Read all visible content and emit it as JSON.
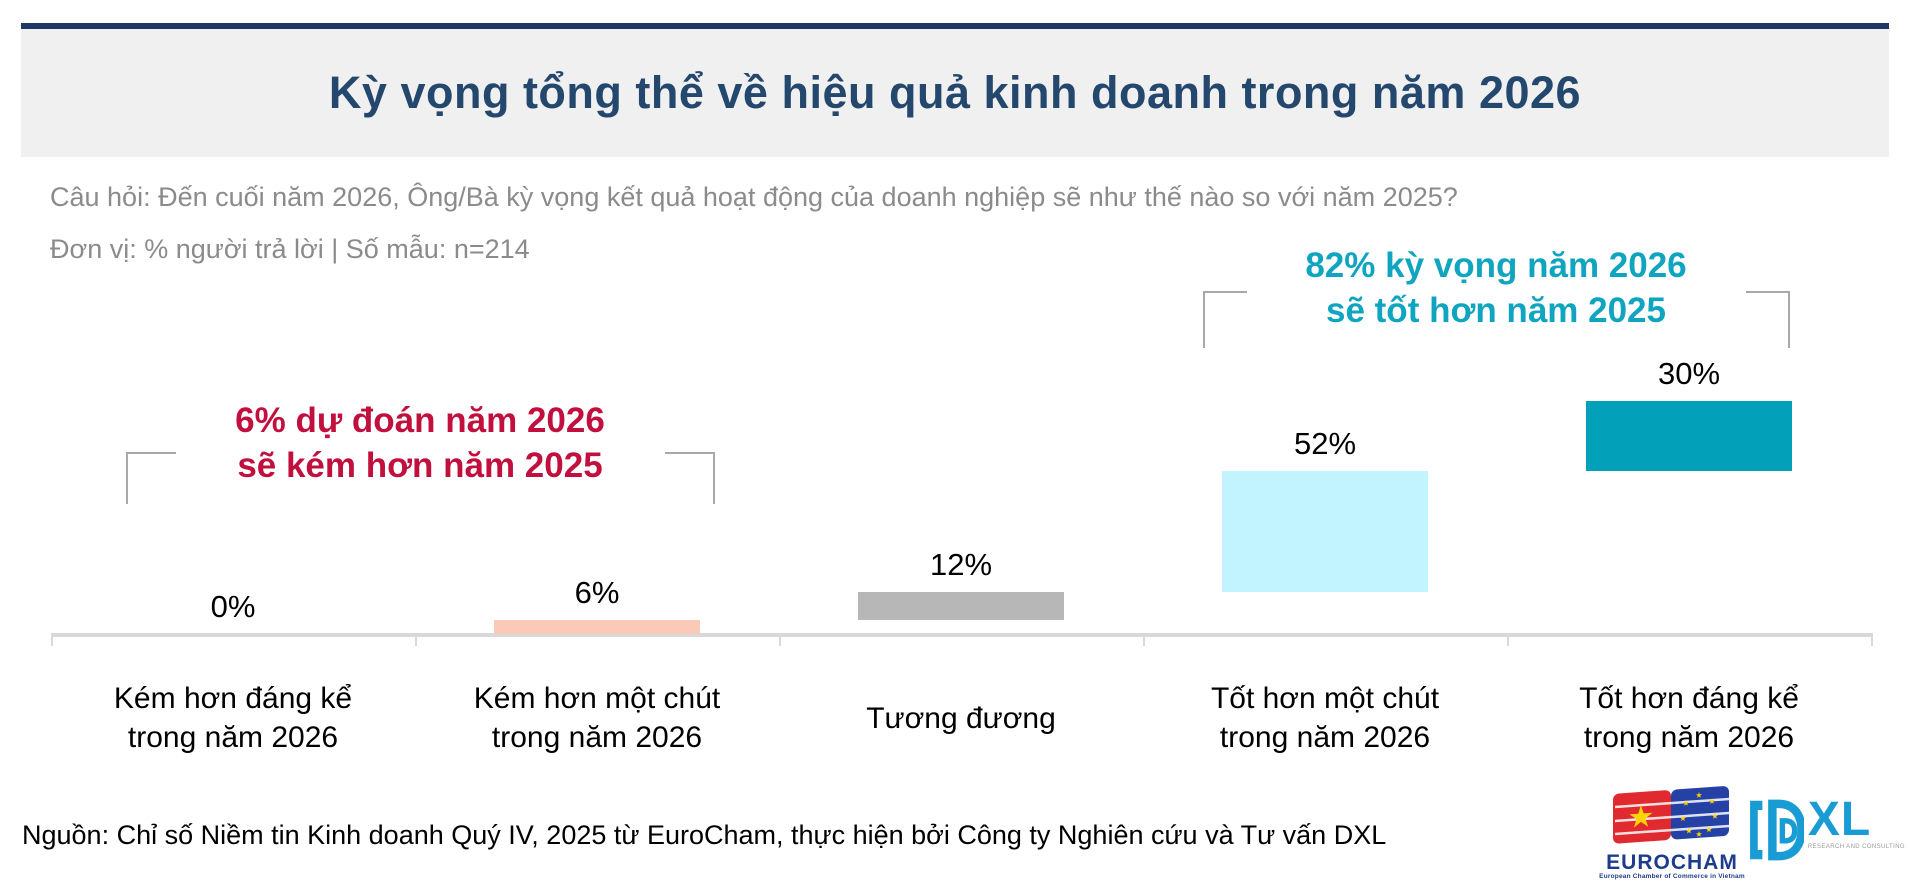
{
  "header": {
    "title": "Kỳ vọng tổng thể về hiệu quả kinh doanh trong năm 2026"
  },
  "question": {
    "line1": "Câu hỏi: Đến cuối năm 2026, Ông/Bà kỳ vọng kết quả hoạt động của doanh nghiệp sẽ như thế nào so với năm 2025?",
    "line2": "Đơn vị: % người trả lời | Số mẫu: n=214"
  },
  "annotations": {
    "negative": {
      "line1": "6% dự đoán năm 2026",
      "line2": "sẽ kém hơn năm 2025",
      "color": "#C2103E"
    },
    "positive": {
      "line1": "82% kỳ vọng năm 2026",
      "line2": "sẽ tốt hơn năm 2025",
      "color": "#0FA5C0"
    }
  },
  "chart_data": {
    "type": "bar",
    "subtype": "cascade-waterfall",
    "title": "Kỳ vọng tổng thể về hiệu quả kinh doanh trong năm 2026",
    "unit": "% người trả lời",
    "sample_size": "n=214",
    "categories": [
      "Kém hơn đáng kể trong năm 2026",
      "Kém hơn một chút trong năm 2026",
      "Tương đương",
      "Tốt hơn một chút trong năm 2026",
      "Tốt hơn đáng kể trong năm 2026"
    ],
    "categories_lines": [
      [
        "Kém hơn đáng kể",
        "trong năm 2026"
      ],
      [
        "Kém hơn một chút",
        "trong năm 2026"
      ],
      [
        "Tương đương"
      ],
      [
        "Tốt hơn một chút",
        "trong năm 2026"
      ],
      [
        "Tốt hơn đáng kể",
        "trong năm 2026"
      ]
    ],
    "values": [
      0,
      6,
      12,
      52,
      30
    ],
    "labels": [
      "0%",
      "6%",
      "12%",
      "52%",
      "30%"
    ],
    "bar_colors": [
      null,
      "#FAC9B7",
      "#B7B7B7",
      "#C1F4FE",
      "#02A0B9"
    ],
    "ylim": [
      0,
      100
    ],
    "grid": false,
    "legend": false,
    "annotations": [
      "6% dự đoán năm 2026 sẽ kém hơn năm 2025",
      "82% kỳ vọng năm 2026 sẽ tốt hơn năm 2025"
    ]
  },
  "footer": {
    "source": "Nguồn: Chỉ số Niềm tin Kinh doanh Quý IV, 2025 từ EuroCham, thực hiện bởi Công ty Nghiên cứu và Tư vấn DXL"
  },
  "logos": {
    "eurocham": {
      "name": "EUROCHAM",
      "tagline": "European Chamber of Commerce in Vietnam"
    },
    "dxl": {
      "name": "XL",
      "tagline": "RESEARCH AND CONSULTING"
    }
  },
  "colors": {
    "top_rule": "#1F3864",
    "title_band_bg": "#F0F0F0",
    "title_text": "#24476E",
    "question_text": "#8B8B8B",
    "axis": "#D9D9D9",
    "bracket": "#A8A8A8",
    "negative_accent": "#C2103E",
    "positive_accent": "#0FA5C0",
    "eurocham_navy": "#1E3C8C",
    "dxl_cyan": "#189CD3"
  }
}
